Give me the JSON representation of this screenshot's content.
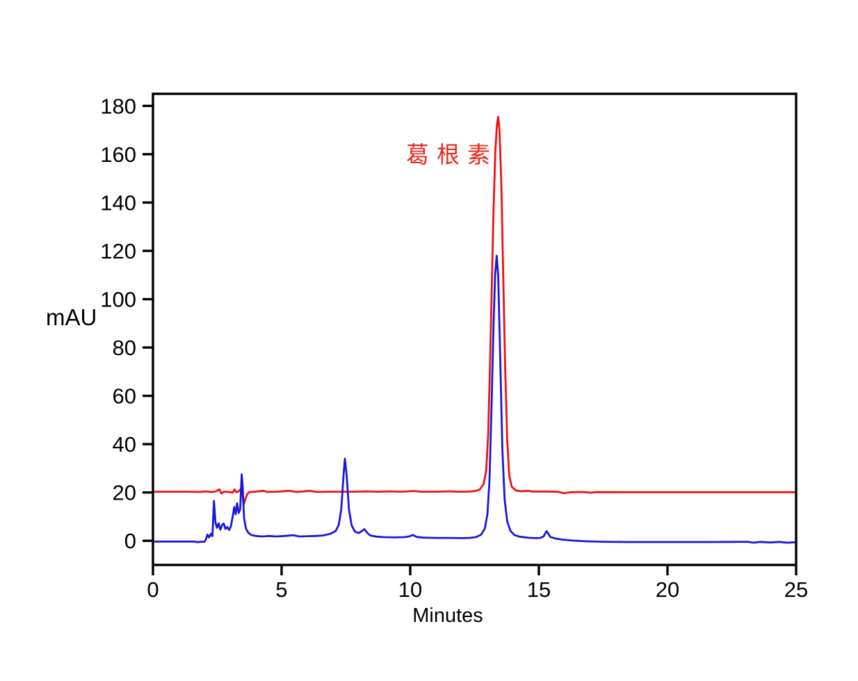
{
  "figure": {
    "background": "#ffffff",
    "xlabel": "Minutes",
    "ylabel": "mAU"
  },
  "chart_data": {
    "type": "line",
    "title": "",
    "xlabel": "Minutes",
    "ylabel": "mAU",
    "xlim": [
      0,
      25
    ],
    "ylim": [
      -10,
      185
    ],
    "x_ticks": [
      0,
      5,
      10,
      15,
      20,
      25
    ],
    "y_ticks": [
      0,
      20,
      40,
      60,
      80,
      100,
      120,
      140,
      160,
      180
    ],
    "grid": false,
    "legend": "none",
    "frame": "full-box",
    "axis_color": "#000000",
    "annotation": {
      "text": "葛根素",
      "color": "#e8291f",
      "x_min": 11.4,
      "y_mau": 162
    },
    "series": [
      {
        "name": "red-trace-offset-baseline-20mAU",
        "color": "#ee1111",
        "baseline_mau": 20.3,
        "main_peak": {
          "time_min": 13.4,
          "height_mau": 175.5
        },
        "points": [
          [
            0,
            20.3
          ],
          [
            0.7,
            20.3
          ],
          [
            1.4,
            20.3
          ],
          [
            1.8,
            20.2
          ],
          [
            2.05,
            20.45
          ],
          [
            2.25,
            20.2
          ],
          [
            2.45,
            20.45
          ],
          [
            2.58,
            21.3
          ],
          [
            2.66,
            19.6
          ],
          [
            2.75,
            20.3
          ],
          [
            2.95,
            20.2
          ],
          [
            3.1,
            19.9
          ],
          [
            3.17,
            21.3
          ],
          [
            3.24,
            20.1
          ],
          [
            3.32,
            20.4
          ],
          [
            3.4,
            21.2
          ],
          [
            3.46,
            22.3
          ],
          [
            3.52,
            14.8
          ],
          [
            3.58,
            16.8
          ],
          [
            3.66,
            19.3
          ],
          [
            3.75,
            20.2
          ],
          [
            3.95,
            20.3
          ],
          [
            4.3,
            20.7
          ],
          [
            4.45,
            20.2
          ],
          [
            4.8,
            20.3
          ],
          [
            5.3,
            20.7
          ],
          [
            5.6,
            20.2
          ],
          [
            6.1,
            20.7
          ],
          [
            6.35,
            20.2
          ],
          [
            6.8,
            20.3
          ],
          [
            7.3,
            20.3
          ],
          [
            7.8,
            20.3
          ],
          [
            8.3,
            20.45
          ],
          [
            8.7,
            20.3
          ],
          [
            9.2,
            20.45
          ],
          [
            9.6,
            20.3
          ],
          [
            10.15,
            20.6
          ],
          [
            10.45,
            20.3
          ],
          [
            11.0,
            20.3
          ],
          [
            11.55,
            20.5
          ],
          [
            11.8,
            20.3
          ],
          [
            12.2,
            20.35
          ],
          [
            12.5,
            20.55
          ],
          [
            12.7,
            21.2
          ],
          [
            12.85,
            23.5
          ],
          [
            12.95,
            29
          ],
          [
            13.03,
            44
          ],
          [
            13.1,
            72
          ],
          [
            13.17,
            105
          ],
          [
            13.24,
            138
          ],
          [
            13.31,
            162
          ],
          [
            13.37,
            172
          ],
          [
            13.42,
            175.5
          ],
          [
            13.47,
            170
          ],
          [
            13.54,
            148
          ],
          [
            13.61,
            112
          ],
          [
            13.69,
            72
          ],
          [
            13.77,
            42
          ],
          [
            13.85,
            27
          ],
          [
            13.95,
            22.3
          ],
          [
            14.1,
            20.9
          ],
          [
            14.3,
            20.5
          ],
          [
            14.55,
            20.7
          ],
          [
            14.75,
            20.4
          ],
          [
            15.2,
            20.4
          ],
          [
            15.7,
            20.3
          ],
          [
            16.0,
            19.7
          ],
          [
            16.25,
            20.1
          ],
          [
            16.7,
            20.2
          ],
          [
            17.0,
            19.9
          ],
          [
            17.25,
            20.15
          ],
          [
            18,
            20.1
          ],
          [
            19,
            20.1
          ],
          [
            20,
            20.1
          ],
          [
            21,
            20.1
          ],
          [
            22,
            20.1
          ],
          [
            23,
            20.1
          ],
          [
            24,
            20.1
          ],
          [
            25,
            20.1
          ]
        ]
      },
      {
        "name": "blue-trace-baseline-0mAU",
        "color": "#1717dd",
        "baseline_mau": 0,
        "main_peak": {
          "time_min": 13.36,
          "height_mau": 118
        },
        "points": [
          [
            0,
            -0.3
          ],
          [
            0.6,
            -0.3
          ],
          [
            1.2,
            -0.3
          ],
          [
            1.6,
            -0.3
          ],
          [
            1.72,
            -0.6
          ],
          [
            1.85,
            -0.4
          ],
          [
            2.0,
            -0.4
          ],
          [
            2.06,
            0.6
          ],
          [
            2.12,
            2.6
          ],
          [
            2.18,
            1.4
          ],
          [
            2.25,
            2.9
          ],
          [
            2.31,
            1.9
          ],
          [
            2.37,
            16.5
          ],
          [
            2.43,
            7.5
          ],
          [
            2.49,
            5.4
          ],
          [
            2.55,
            7.2
          ],
          [
            2.62,
            4.6
          ],
          [
            2.69,
            6.6
          ],
          [
            2.75,
            7.1
          ],
          [
            2.82,
            4.9
          ],
          [
            2.89,
            5.7
          ],
          [
            2.96,
            4.5
          ],
          [
            3.03,
            6.0
          ],
          [
            3.09,
            9.5
          ],
          [
            3.16,
            14.0
          ],
          [
            3.21,
            11.0
          ],
          [
            3.27,
            15.5
          ],
          [
            3.33,
            11.5
          ],
          [
            3.39,
            13.0
          ],
          [
            3.45,
            27.5
          ],
          [
            3.49,
            22.0
          ],
          [
            3.54,
            9.5
          ],
          [
            3.61,
            5.2
          ],
          [
            3.7,
            3.4
          ],
          [
            3.82,
            2.4
          ],
          [
            4.0,
            2.0
          ],
          [
            4.25,
            1.8
          ],
          [
            4.5,
            2.0
          ],
          [
            4.8,
            1.8
          ],
          [
            5.1,
            2.0
          ],
          [
            5.45,
            2.3
          ],
          [
            5.7,
            1.8
          ],
          [
            6.0,
            1.9
          ],
          [
            6.3,
            2.0
          ],
          [
            6.6,
            2.2
          ],
          [
            6.9,
            2.9
          ],
          [
            7.1,
            4.0
          ],
          [
            7.22,
            6.5
          ],
          [
            7.32,
            13.0
          ],
          [
            7.4,
            26.0
          ],
          [
            7.46,
            34.0
          ],
          [
            7.53,
            27.0
          ],
          [
            7.62,
            13.0
          ],
          [
            7.72,
            6.5
          ],
          [
            7.85,
            3.8
          ],
          [
            8.0,
            3.2
          ],
          [
            8.12,
            4.0
          ],
          [
            8.22,
            4.8
          ],
          [
            8.32,
            3.4
          ],
          [
            8.45,
            2.2
          ],
          [
            8.7,
            1.7
          ],
          [
            9.0,
            1.5
          ],
          [
            9.4,
            1.4
          ],
          [
            9.75,
            1.5
          ],
          [
            9.95,
            1.8
          ],
          [
            10.1,
            2.4
          ],
          [
            10.25,
            1.6
          ],
          [
            10.5,
            1.3
          ],
          [
            11.0,
            1.2
          ],
          [
            11.5,
            1.2
          ],
          [
            12.0,
            1.1
          ],
          [
            12.3,
            1.2
          ],
          [
            12.55,
            1.5
          ],
          [
            12.75,
            2.5
          ],
          [
            12.9,
            5.0
          ],
          [
            13.0,
            11.0
          ],
          [
            13.08,
            25.0
          ],
          [
            13.16,
            55.0
          ],
          [
            13.24,
            90.0
          ],
          [
            13.3,
            110.0
          ],
          [
            13.36,
            118.0
          ],
          [
            13.42,
            110.0
          ],
          [
            13.5,
            75.0
          ],
          [
            13.58,
            38.0
          ],
          [
            13.67,
            17.0
          ],
          [
            13.77,
            8.0
          ],
          [
            13.9,
            4.0
          ],
          [
            14.05,
            2.4
          ],
          [
            14.25,
            1.7
          ],
          [
            14.55,
            1.3
          ],
          [
            14.85,
            1.1
          ],
          [
            15.05,
            1.2
          ],
          [
            15.18,
            1.8
          ],
          [
            15.3,
            4.0
          ],
          [
            15.45,
            1.6
          ],
          [
            15.62,
            1.0
          ],
          [
            15.9,
            0.5
          ],
          [
            16.3,
            0.1
          ],
          [
            16.8,
            -0.2
          ],
          [
            17.5,
            -0.4
          ],
          [
            18.5,
            -0.5
          ],
          [
            19.5,
            -0.5
          ],
          [
            20.5,
            -0.5
          ],
          [
            21.5,
            -0.5
          ],
          [
            22.5,
            -0.45
          ],
          [
            23.1,
            -0.4
          ],
          [
            23.35,
            -0.8
          ],
          [
            23.6,
            -0.45
          ],
          [
            24.0,
            -0.7
          ],
          [
            24.35,
            -0.45
          ],
          [
            24.65,
            -0.8
          ],
          [
            25,
            -0.6
          ]
        ]
      }
    ]
  }
}
